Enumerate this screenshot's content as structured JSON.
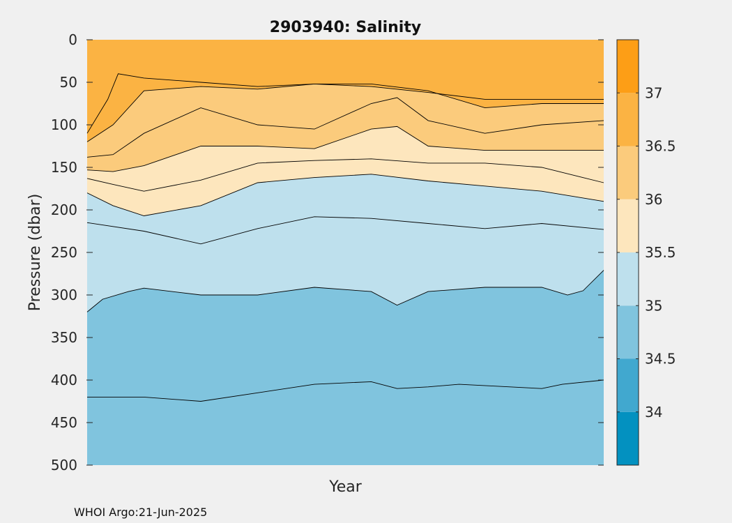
{
  "footer": {
    "credit": "WHOI Argo:21-Jun-2025"
  },
  "colors": {
    "background": "#f0f0f0",
    "levels": [
      "#0391c0",
      "#41a8cf",
      "#80c4de",
      "#bee0ed",
      "#fde6bd",
      "#fbcb7c",
      "#fbb343",
      "#fd9e16"
    ]
  },
  "chart_data": {
    "type": "contour",
    "title": "2903940:  Salinity",
    "xlabel": "Year",
    "ylabel": "Pressure (dbar)",
    "ylim": [
      500,
      0
    ],
    "y_reversed": true,
    "y_ticks": [
      0,
      50,
      100,
      150,
      200,
      250,
      300,
      350,
      400,
      450,
      500
    ],
    "x_ticks": [],
    "x": [
      0,
      1
    ],
    "colorbar": {
      "limits": [
        33.5,
        37.5
      ],
      "ticks": [
        34,
        34.5,
        35,
        35.5,
        36,
        36.5,
        37
      ],
      "bands": [
        {
          "from": 33.5,
          "to": 34.0
        },
        {
          "from": 34.0,
          "to": 34.5
        },
        {
          "from": 34.5,
          "to": 35.0
        },
        {
          "from": 35.0,
          "to": 35.5
        },
        {
          "from": 35.5,
          "to": 36.0
        },
        {
          "from": 36.0,
          "to": 36.5
        },
        {
          "from": 36.5,
          "to": 37.0
        },
        {
          "from": 37.0,
          "to": 37.5
        }
      ]
    },
    "contours": [
      {
        "level": 34.75,
        "x": [
          0,
          0.05,
          0.11,
          0.22,
          0.33,
          0.44,
          0.55,
          0.6,
          0.66,
          0.72,
          0.88,
          0.92,
          1.0
        ],
        "depth": [
          420,
          420,
          420,
          425,
          415,
          405,
          402,
          410,
          408,
          405,
          410,
          405,
          400
        ]
      },
      {
        "level": 35.0,
        "x": [
          0,
          0.03,
          0.08,
          0.11,
          0.22,
          0.33,
          0.44,
          0.55,
          0.6,
          0.66,
          0.77,
          0.88,
          0.93,
          0.96,
          1.0
        ],
        "depth": [
          320,
          305,
          296,
          292,
          300,
          300,
          291,
          296,
          312,
          296,
          291,
          291,
          300,
          295,
          271
        ]
      },
      {
        "level": 35.25,
        "x": [
          0,
          0.11,
          0.22,
          0.33,
          0.44,
          0.55,
          0.66,
          0.77,
          0.88,
          1.0
        ],
        "depth": [
          215,
          225,
          240,
          222,
          208,
          210,
          216,
          222,
          216,
          223
        ]
      },
      {
        "level": 35.5,
        "x": [
          0,
          0.05,
          0.11,
          0.22,
          0.33,
          0.44,
          0.55,
          0.66,
          0.77,
          0.88,
          1.0
        ],
        "depth": [
          180,
          195,
          207,
          195,
          168,
          162,
          158,
          166,
          172,
          178,
          190
        ]
      },
      {
        "level": 35.75,
        "x": [
          0,
          0.05,
          0.11,
          0.22,
          0.33,
          0.44,
          0.55,
          0.66,
          0.77,
          0.88,
          1.0
        ],
        "depth": [
          163,
          170,
          178,
          165,
          145,
          142,
          140,
          145,
          145,
          150,
          168
        ]
      },
      {
        "level": 36.0,
        "x": [
          0,
          0.05,
          0.11,
          0.22,
          0.33,
          0.44,
          0.55,
          0.6,
          0.66,
          0.77,
          0.88,
          1.0
        ],
        "depth": [
          153,
          155,
          148,
          125,
          125,
          128,
          105,
          102,
          125,
          130,
          130,
          130
        ]
      },
      {
        "level": 36.25,
        "x": [
          0,
          0.05,
          0.11,
          0.22,
          0.33,
          0.44,
          0.55,
          0.6,
          0.66,
          0.77,
          0.88,
          1.0
        ],
        "depth": [
          138,
          135,
          110,
          80,
          100,
          105,
          75,
          68,
          95,
          110,
          100,
          95
        ]
      },
      {
        "level": 36.5,
        "x": [
          0,
          0.05,
          0.11,
          0.22,
          0.33,
          0.44,
          0.55,
          0.66,
          0.77,
          0.88,
          1.0
        ],
        "depth": [
          120,
          100,
          60,
          55,
          58,
          52,
          52,
          60,
          80,
          75,
          75
        ]
      },
      {
        "level": 36.75,
        "x": [
          0,
          0.04,
          0.06,
          0.11,
          0.22,
          0.33,
          0.44,
          0.55,
          0.66,
          0.77,
          0.88,
          1.0
        ],
        "depth": [
          110,
          70,
          40,
          45,
          50,
          55,
          52,
          55,
          62,
          70,
          70,
          70
        ]
      }
    ]
  }
}
